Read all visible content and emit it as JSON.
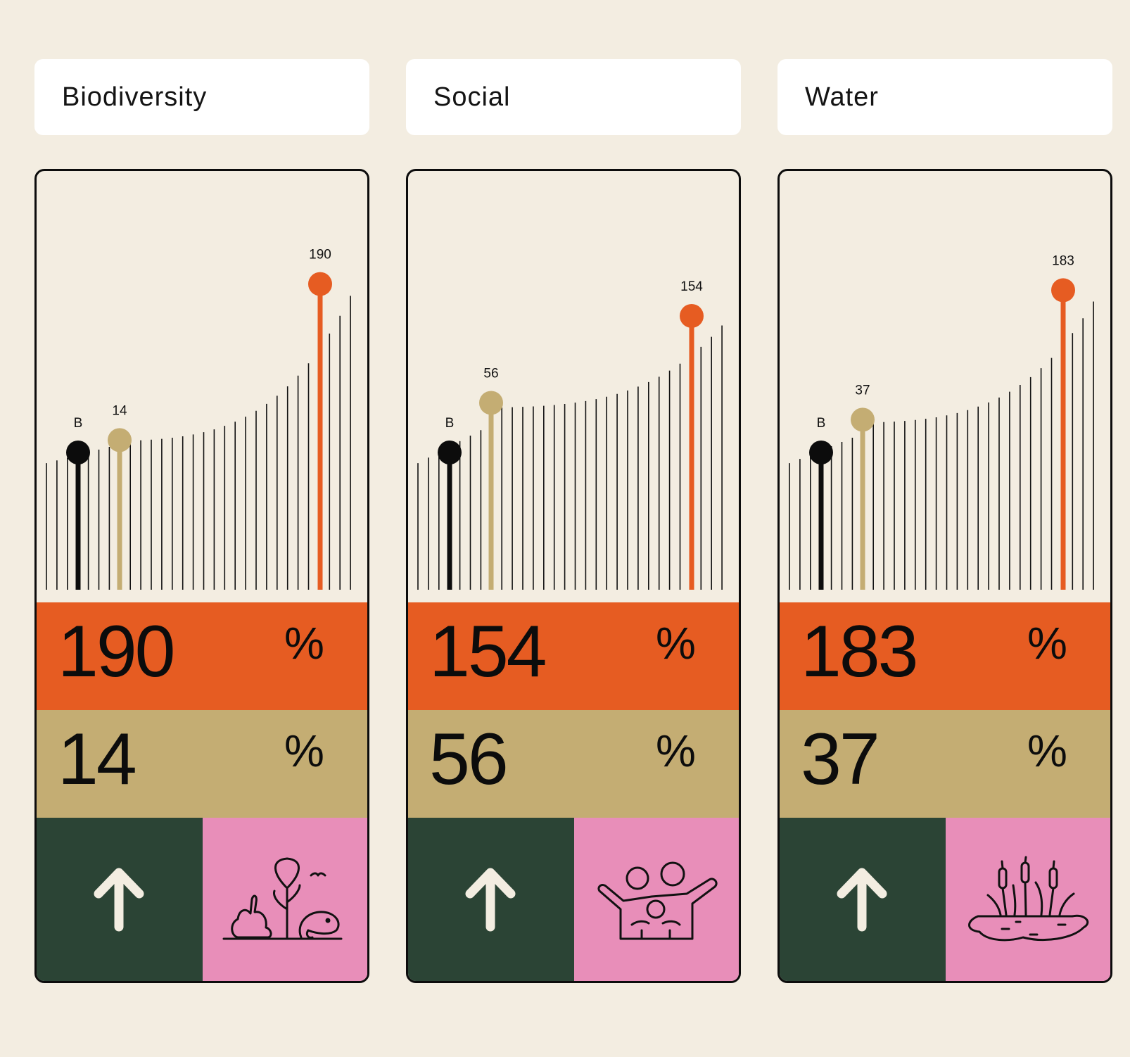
{
  "chart_data": [
    {
      "type": "bar",
      "title": "Biodiversity",
      "markers": [
        {
          "label": "B",
          "value": 0
        },
        {
          "label": "14",
          "value": 14
        },
        {
          "label": "190",
          "value": 190
        }
      ],
      "primary_value": "190",
      "secondary_value": "14",
      "unit": "%",
      "colors": {
        "baseline": "#0c0c0c",
        "secondary": "#c4ad73",
        "primary": "#e65c22"
      }
    },
    {
      "type": "bar",
      "title": "Social",
      "markers": [
        {
          "label": "B",
          "value": 0
        },
        {
          "label": "56",
          "value": 56
        },
        {
          "label": "154",
          "value": 154
        }
      ],
      "primary_value": "154",
      "secondary_value": "56",
      "unit": "%",
      "colors": {
        "baseline": "#0c0c0c",
        "secondary": "#c4ad73",
        "primary": "#e65c22"
      }
    },
    {
      "type": "bar",
      "title": "Water",
      "markers": [
        {
          "label": "B",
          "value": 0
        },
        {
          "label": "37",
          "value": 37
        },
        {
          "label": "183",
          "value": 183
        }
      ],
      "primary_value": "183",
      "secondary_value": "37",
      "unit": "%",
      "colors": {
        "baseline": "#0c0c0c",
        "secondary": "#c4ad73",
        "primary": "#e65c22"
      }
    }
  ],
  "tiles": [
    {
      "trend_icon": "up-arrow-icon",
      "category_icon": "wildlife-icon"
    },
    {
      "trend_icon": "up-arrow-icon",
      "category_icon": "family-icon"
    },
    {
      "trend_icon": "up-arrow-icon",
      "category_icon": "wetland-icon"
    }
  ]
}
